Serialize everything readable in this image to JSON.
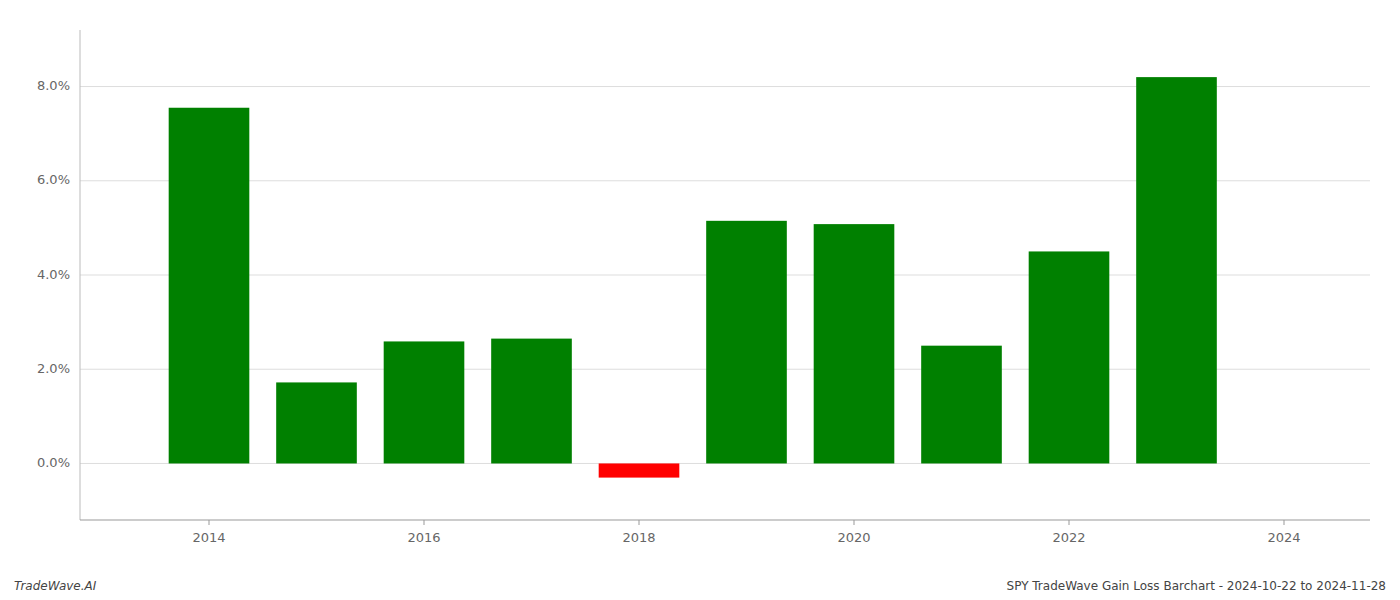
{
  "chart_data": {
    "type": "bar",
    "x": [
      2014,
      2015,
      2016,
      2017,
      2018,
      2019,
      2020,
      2021,
      2022,
      2023
    ],
    "values": [
      0.0755,
      0.0172,
      0.0259,
      0.0265,
      -0.003,
      0.0515,
      0.0508,
      0.025,
      0.045,
      0.082
    ],
    "colors": [
      "#008000",
      "#008000",
      "#008000",
      "#008000",
      "#ff0000",
      "#008000",
      "#008000",
      "#008000",
      "#008000",
      "#008000"
    ],
    "ylim": [
      -0.012,
      0.092
    ],
    "yticks": [
      {
        "value": 0.0,
        "label": "0.0%"
      },
      {
        "value": 0.02,
        "label": "2.0%"
      },
      {
        "value": 0.04,
        "label": "4.0%"
      },
      {
        "value": 0.06,
        "label": "6.0%"
      },
      {
        "value": 0.08,
        "label": "8.0%"
      }
    ],
    "xlim": [
      2012.8,
      2024.8
    ],
    "xticks": [
      2014,
      2016,
      2018,
      2020,
      2022,
      2024
    ],
    "grid": true,
    "annotations": [
      "TradeWave.AI",
      "SPY TradeWave Gain Loss Barchart - 2024-10-22 to 2024-11-28"
    ]
  }
}
